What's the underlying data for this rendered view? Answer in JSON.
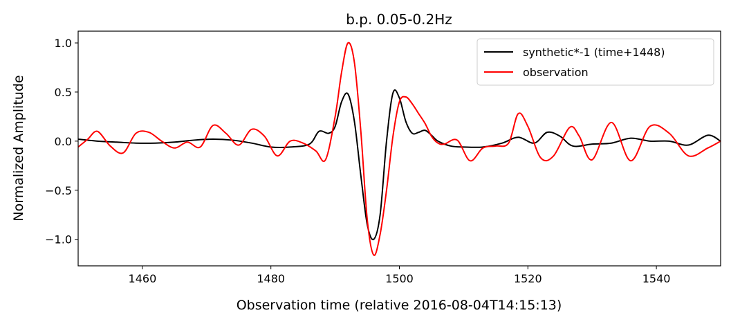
{
  "chart_data": {
    "type": "line",
    "title": "b.p. 0.05-0.2Hz",
    "xlabel": "Observation time (relative 2016-08-04T14:15:13)",
    "ylabel": "Normalized Amplitude",
    "xlim": [
      1450,
      1550
    ],
    "ylim": [
      -1.27,
      1.12
    ],
    "xticks": [
      1460,
      1480,
      1500,
      1520,
      1540
    ],
    "xtick_labels": [
      "1460",
      "1480",
      "1500",
      "1520",
      "1540"
    ],
    "yticks": [
      1.0,
      0.5,
      0.0,
      -0.5,
      -1.0
    ],
    "ytick_labels": [
      "1.0",
      "0.5",
      "0.0",
      "−0.5",
      "−1.0"
    ],
    "grid": false,
    "legend_position": "top-right",
    "series": [
      {
        "name": "synthetic*-1 (time+1448)",
        "color": "#000000",
        "x": [
          1450,
          1453,
          1456,
          1459,
          1462,
          1465,
          1468,
          1471,
          1474,
          1477,
          1480,
          1483,
          1486,
          1487.5,
          1489,
          1490,
          1491,
          1492,
          1493,
          1494,
          1495,
          1496,
          1497,
          1498,
          1499,
          1500,
          1501,
          1502,
          1503,
          1504,
          1505,
          1506,
          1508,
          1510,
          1513,
          1516,
          1518.5,
          1521,
          1523,
          1525,
          1527,
          1530,
          1533,
          1536,
          1539,
          1542,
          1545,
          1548,
          1550
        ],
        "y": [
          0.02,
          0.0,
          -0.01,
          -0.02,
          -0.02,
          -0.01,
          0.01,
          0.02,
          0.01,
          -0.02,
          -0.06,
          -0.06,
          -0.03,
          0.1,
          0.08,
          0.15,
          0.4,
          0.48,
          0.2,
          -0.35,
          -0.85,
          -1.0,
          -0.75,
          0.0,
          0.49,
          0.44,
          0.2,
          0.08,
          0.09,
          0.11,
          0.06,
          0.0,
          -0.05,
          -0.06,
          -0.06,
          -0.02,
          0.04,
          -0.02,
          0.09,
          0.05,
          -0.05,
          -0.03,
          -0.02,
          0.03,
          0.0,
          0.0,
          -0.04,
          0.06,
          0.0
        ]
      },
      {
        "name": "observation",
        "color": "#ff0000",
        "x": [
          1450,
          1451.5,
          1453,
          1455,
          1457,
          1459,
          1461,
          1463,
          1465,
          1467,
          1469,
          1471,
          1473,
          1475,
          1477,
          1479,
          1481,
          1483,
          1485,
          1487,
          1488.5,
          1490,
          1491,
          1492,
          1493,
          1494,
          1495,
          1496,
          1497,
          1498,
          1499,
          1500,
          1501,
          1502,
          1503,
          1504,
          1505,
          1506,
          1507,
          1509,
          1511,
          1513,
          1515,
          1517,
          1518.5,
          1520,
          1522,
          1524,
          1526.5,
          1528,
          1530,
          1533,
          1536,
          1539,
          1542,
          1545,
          1548,
          1550
        ],
        "y": [
          -0.06,
          0.02,
          0.1,
          -0.05,
          -0.12,
          0.08,
          0.09,
          0.0,
          -0.07,
          -0.01,
          -0.06,
          0.16,
          0.08,
          -0.04,
          0.12,
          0.05,
          -0.15,
          0.0,
          -0.02,
          -0.1,
          -0.19,
          0.25,
          0.7,
          1.0,
          0.8,
          0.1,
          -0.8,
          -1.16,
          -0.95,
          -0.5,
          0.05,
          0.4,
          0.45,
          0.38,
          0.28,
          0.18,
          0.05,
          -0.02,
          -0.03,
          0.01,
          -0.2,
          -0.07,
          -0.05,
          -0.02,
          0.28,
          0.15,
          -0.17,
          -0.15,
          0.14,
          0.05,
          -0.19,
          0.19,
          -0.2,
          0.15,
          0.08,
          -0.15,
          -0.07,
          0.0
        ]
      }
    ]
  }
}
